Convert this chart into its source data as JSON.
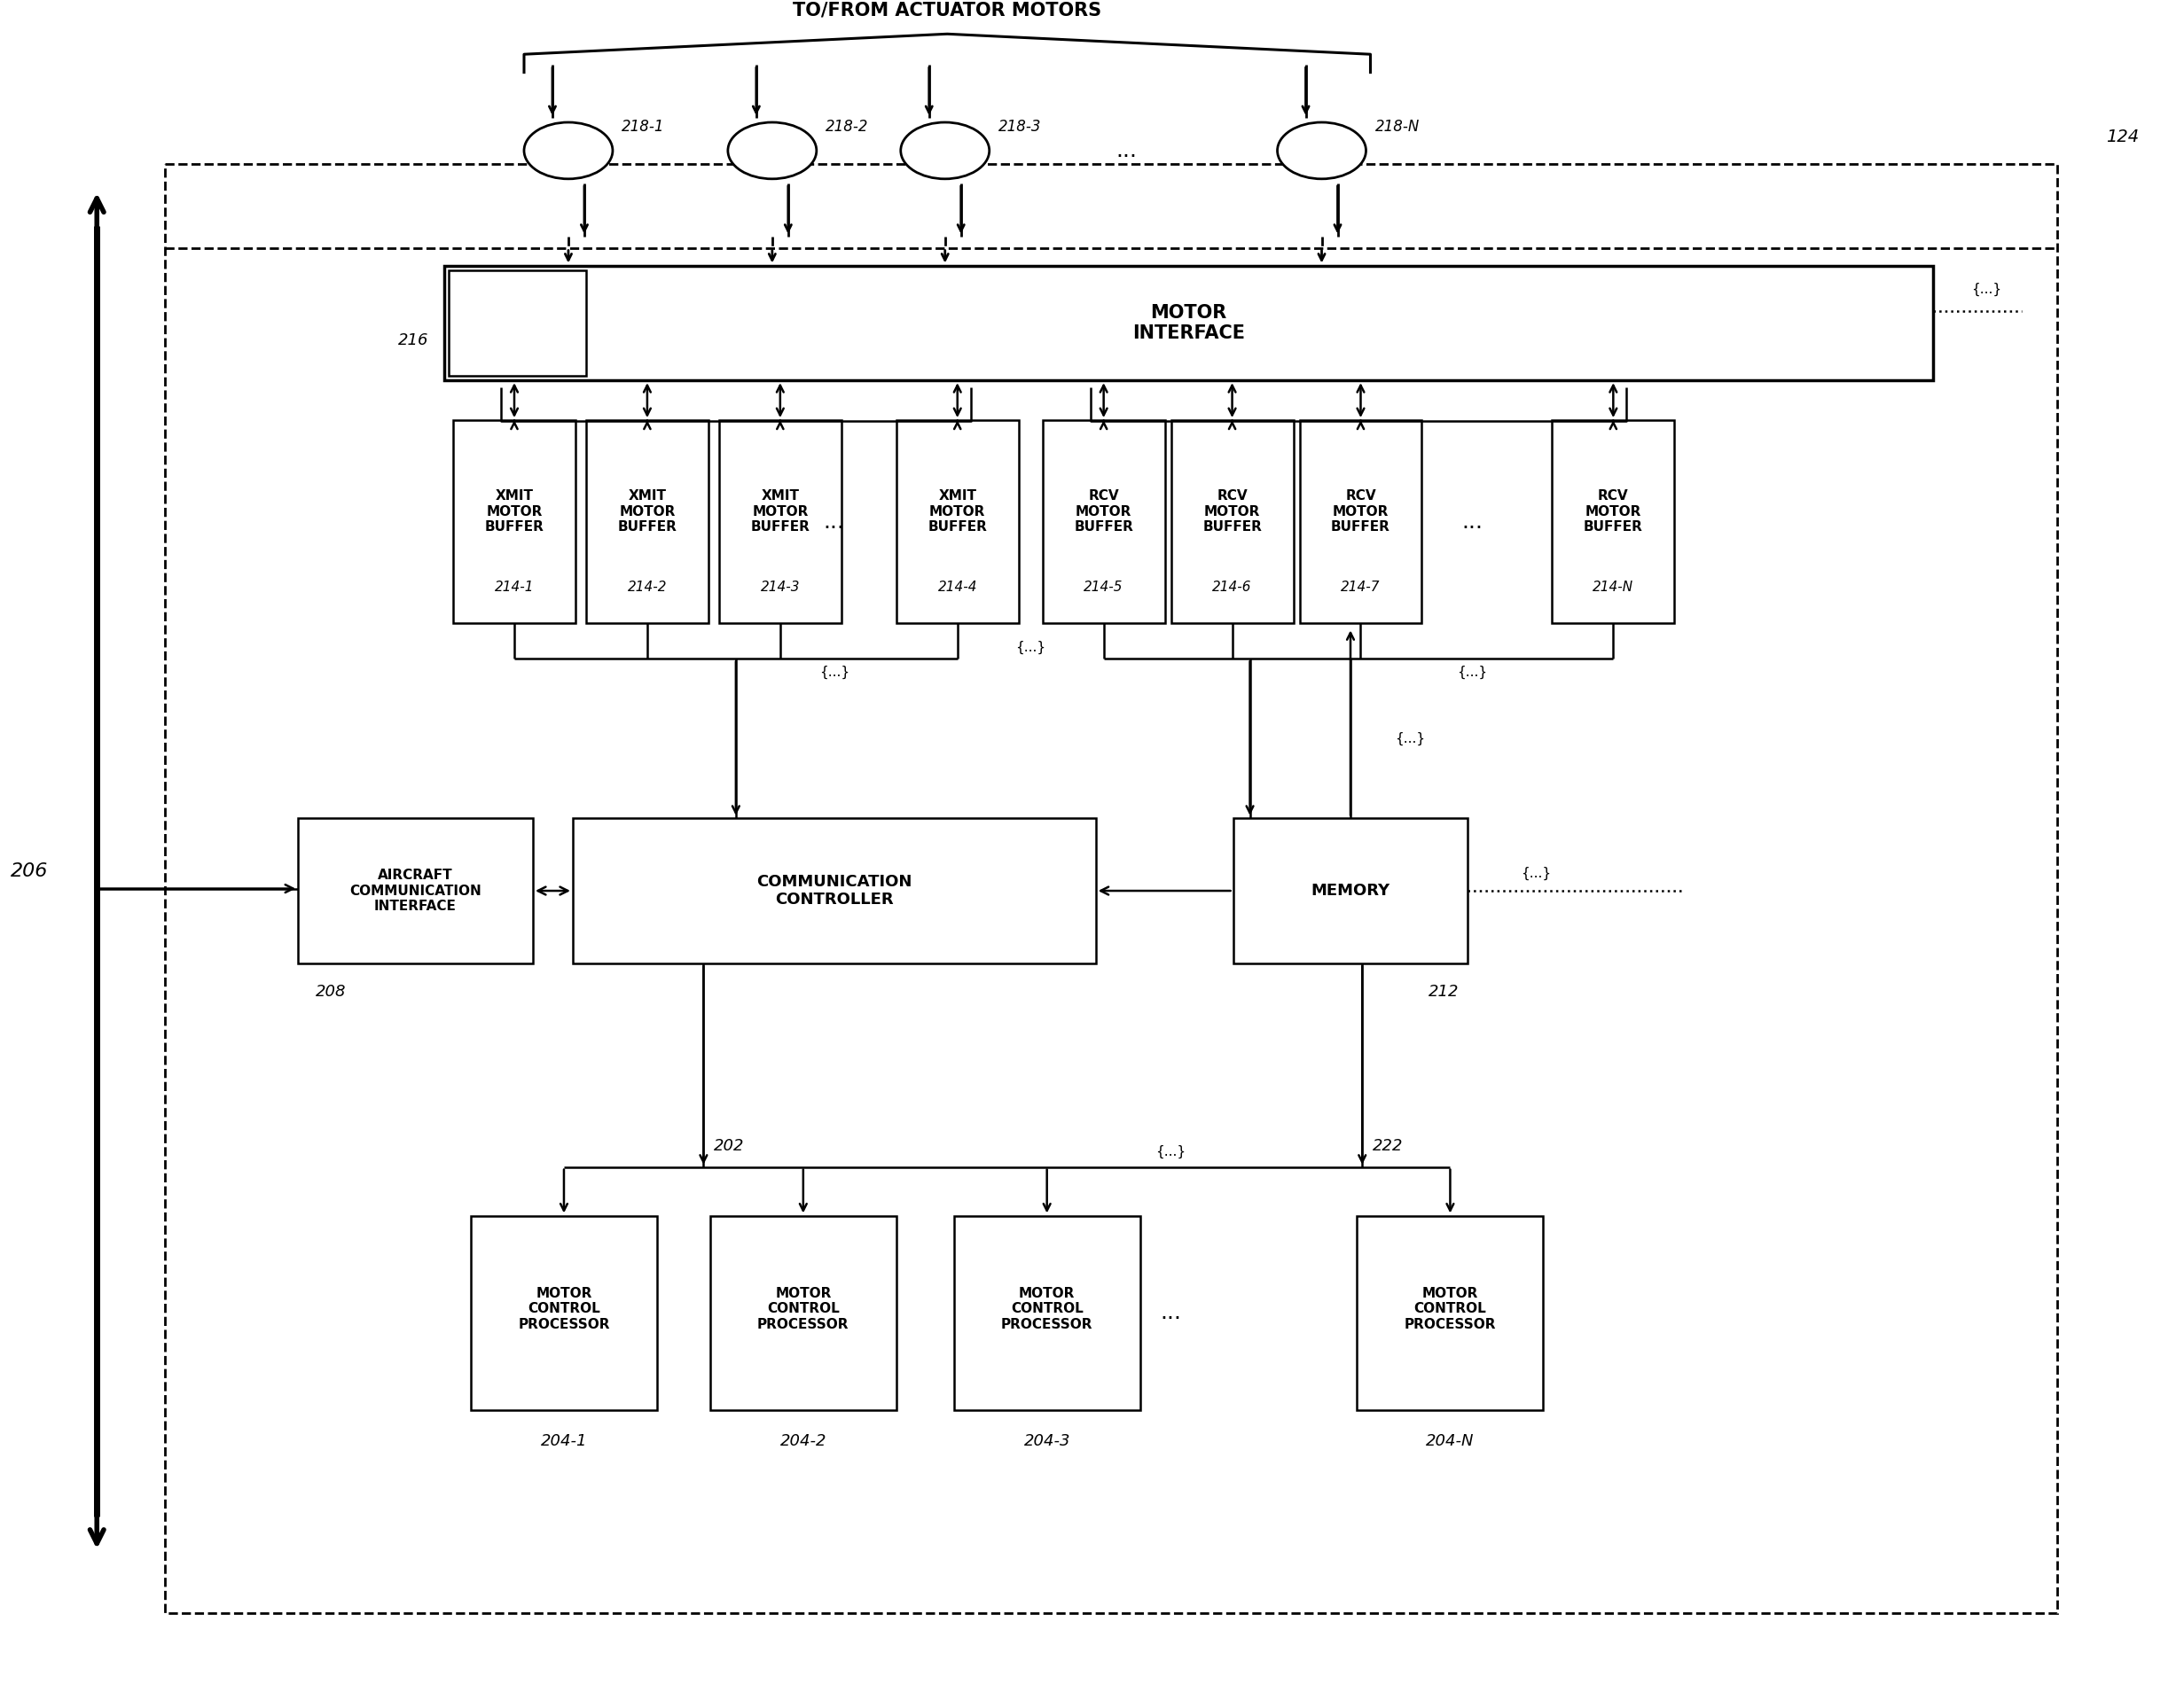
{
  "bg": "#ffffff",
  "lc": "#000000",
  "fig_w": 24.63,
  "fig_h": 19.0,
  "top_label": "TO/FROM ACTUATOR MOTORS",
  "ref_124": "124",
  "ref_206": "206",
  "ref_216": "216",
  "ref_208": "208",
  "ref_202": "202",
  "ref_222": "222",
  "ref_212": "212",
  "mi_text": "MOTOR\nINTERFACE",
  "cc_text": "COMMUNICATION\nCONTROLLER",
  "mem_text": "MEMORY",
  "aci_text": "AIRCRAFT\nCOMMUNICATION\nINTERFACE",
  "xmit_text": "XMIT\nMOTOR\nBUFFER",
  "rcv_text": "RCV\nMOTOR\nBUFFER",
  "proc_text": "MOTOR\nCONTROL\nPROCESSOR",
  "xmit_refs": [
    "214-1",
    "214-2",
    "214-3",
    "214-4"
  ],
  "rcv_refs": [
    "214-5",
    "214-6",
    "214-7",
    "214-N"
  ],
  "proc_refs": [
    "204-1",
    "204-2",
    "204-3",
    "204-N"
  ],
  "motor_refs": [
    "218-1",
    "218-2",
    "218-3",
    "218-N"
  ]
}
